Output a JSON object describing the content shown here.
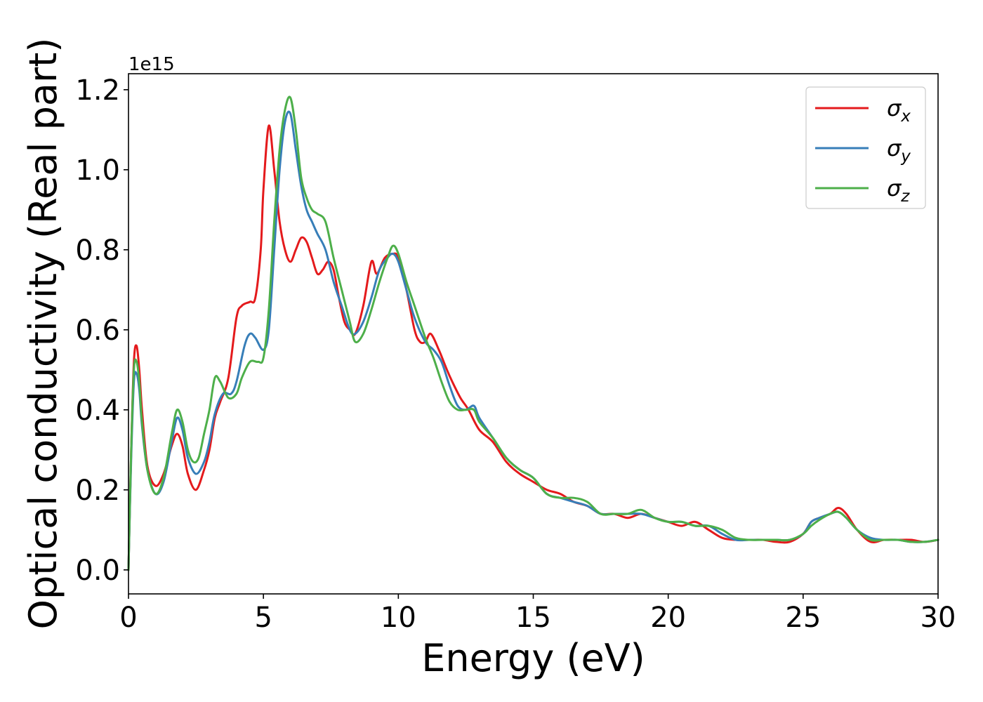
{
  "chart_data": {
    "type": "line",
    "xlabel": "Energy (eV)",
    "ylabel": "Optical conductivity (Real part)",
    "y_offset_label": "1e15",
    "xlim": [
      0,
      30
    ],
    "ylim": [
      -0.06,
      1.24
    ],
    "xticks": [
      0,
      5,
      10,
      15,
      20,
      25,
      30
    ],
    "xtick_labels": [
      "0",
      "5",
      "10",
      "15",
      "20",
      "25",
      "30"
    ],
    "yticks": [
      0.0,
      0.2,
      0.4,
      0.6,
      0.8,
      1.0,
      1.2
    ],
    "ytick_labels": [
      "0.0",
      "0.2",
      "0.4",
      "0.6",
      "0.8",
      "1.0",
      "1.2"
    ],
    "grid": false,
    "legend_position": "top-right",
    "series": [
      {
        "name": "σx",
        "legend_base": "σ",
        "legend_sub": "x",
        "color": "#e41a1c",
        "x": [
          0,
          0.1,
          0.2,
          0.3,
          0.4,
          0.5,
          0.7,
          1.0,
          1.3,
          1.6,
          1.8,
          2.0,
          2.2,
          2.5,
          2.8,
          3.0,
          3.2,
          3.4,
          3.7,
          4.0,
          4.2,
          4.5,
          4.7,
          4.9,
          5.0,
          5.2,
          5.4,
          5.6,
          5.8,
          6.0,
          6.2,
          6.4,
          6.6,
          6.8,
          7.0,
          7.2,
          7.4,
          7.6,
          7.8,
          8.0,
          8.2,
          8.4,
          8.7,
          9.0,
          9.2,
          9.5,
          9.8,
          10.0,
          10.3,
          10.6,
          10.8,
          11.0,
          11.2,
          11.5,
          11.8,
          12.0,
          12.3,
          12.6,
          13.0,
          13.5,
          14.0,
          14.5,
          15.0,
          15.5,
          16.0,
          16.5,
          17.0,
          17.5,
          18.0,
          18.5,
          19.0,
          19.5,
          20.0,
          20.5,
          21.0,
          21.5,
          22.0,
          22.5,
          23.0,
          23.5,
          24.0,
          24.5,
          25.0,
          25.3,
          25.6,
          26.0,
          26.3,
          26.6,
          27.0,
          27.5,
          28.0,
          28.5,
          29.0,
          29.5,
          30.0
        ],
        "values": [
          0.0,
          0.3,
          0.52,
          0.56,
          0.5,
          0.4,
          0.26,
          0.21,
          0.24,
          0.31,
          0.34,
          0.31,
          0.24,
          0.2,
          0.25,
          0.3,
          0.38,
          0.42,
          0.48,
          0.63,
          0.66,
          0.67,
          0.68,
          0.8,
          0.95,
          1.11,
          1.0,
          0.87,
          0.8,
          0.77,
          0.8,
          0.83,
          0.82,
          0.78,
          0.74,
          0.75,
          0.77,
          0.75,
          0.68,
          0.62,
          0.6,
          0.59,
          0.66,
          0.77,
          0.74,
          0.78,
          0.79,
          0.78,
          0.7,
          0.6,
          0.57,
          0.57,
          0.59,
          0.55,
          0.5,
          0.47,
          0.43,
          0.4,
          0.35,
          0.32,
          0.27,
          0.24,
          0.22,
          0.2,
          0.19,
          0.17,
          0.16,
          0.14,
          0.14,
          0.13,
          0.14,
          0.13,
          0.12,
          0.11,
          0.12,
          0.1,
          0.08,
          0.075,
          0.075,
          0.075,
          0.07,
          0.07,
          0.09,
          0.12,
          0.13,
          0.14,
          0.155,
          0.14,
          0.1,
          0.07,
          0.075,
          0.075,
          0.075,
          0.07,
          0.075
        ]
      },
      {
        "name": "σy",
        "legend_base": "σ",
        "legend_sub": "y",
        "color": "#377eb8",
        "x": [
          0,
          0.1,
          0.2,
          0.3,
          0.4,
          0.5,
          0.7,
          1.0,
          1.3,
          1.6,
          1.8,
          2.0,
          2.2,
          2.5,
          2.8,
          3.0,
          3.2,
          3.5,
          3.8,
          4.0,
          4.3,
          4.5,
          4.7,
          5.0,
          5.2,
          5.4,
          5.6,
          5.8,
          6.0,
          6.2,
          6.4,
          6.6,
          6.8,
          7.0,
          7.3,
          7.6,
          7.9,
          8.2,
          8.4,
          8.7,
          9.0,
          9.3,
          9.6,
          9.8,
          10.0,
          10.3,
          10.6,
          11.0,
          11.3,
          11.6,
          11.9,
          12.2,
          12.5,
          12.8,
          13.0,
          13.5,
          14.0,
          14.5,
          15.0,
          15.5,
          16.0,
          16.5,
          17.0,
          17.5,
          18.0,
          18.5,
          19.0,
          19.5,
          20.0,
          20.5,
          21.0,
          21.5,
          22.0,
          22.5,
          23.0,
          23.5,
          24.0,
          24.5,
          25.0,
          25.3,
          25.6,
          26.0,
          26.3,
          26.6,
          27.0,
          27.5,
          28.0,
          28.5,
          29.0,
          29.5,
          30.0
        ],
        "values": [
          0.0,
          0.28,
          0.47,
          0.49,
          0.45,
          0.36,
          0.25,
          0.19,
          0.22,
          0.32,
          0.38,
          0.35,
          0.28,
          0.24,
          0.27,
          0.32,
          0.39,
          0.44,
          0.44,
          0.47,
          0.56,
          0.59,
          0.58,
          0.55,
          0.6,
          0.8,
          1.0,
          1.12,
          1.14,
          1.05,
          0.96,
          0.9,
          0.87,
          0.84,
          0.8,
          0.72,
          0.66,
          0.6,
          0.59,
          0.62,
          0.68,
          0.75,
          0.78,
          0.79,
          0.77,
          0.7,
          0.63,
          0.57,
          0.55,
          0.52,
          0.46,
          0.41,
          0.4,
          0.41,
          0.38,
          0.33,
          0.28,
          0.25,
          0.23,
          0.19,
          0.18,
          0.17,
          0.16,
          0.14,
          0.14,
          0.14,
          0.14,
          0.13,
          0.12,
          0.12,
          0.11,
          0.11,
          0.09,
          0.075,
          0.075,
          0.075,
          0.075,
          0.075,
          0.09,
          0.12,
          0.13,
          0.14,
          0.145,
          0.13,
          0.1,
          0.08,
          0.075,
          0.075,
          0.07,
          0.07,
          0.075
        ]
      },
      {
        "name": "σz",
        "legend_base": "σ",
        "legend_sub": "z",
        "color": "#4daf4a",
        "x": [
          0,
          0.1,
          0.2,
          0.3,
          0.4,
          0.5,
          0.7,
          1.0,
          1.3,
          1.6,
          1.8,
          2.0,
          2.2,
          2.4,
          2.6,
          2.8,
          3.0,
          3.2,
          3.4,
          3.7,
          4.0,
          4.2,
          4.5,
          4.8,
          5.0,
          5.2,
          5.4,
          5.6,
          5.8,
          6.0,
          6.2,
          6.4,
          6.6,
          6.8,
          7.0,
          7.3,
          7.6,
          7.9,
          8.2,
          8.4,
          8.7,
          9.0,
          9.3,
          9.6,
          9.8,
          10.0,
          10.3,
          10.6,
          11.0,
          11.3,
          11.6,
          11.9,
          12.2,
          12.5,
          12.8,
          13.0,
          13.5,
          14.0,
          14.5,
          15.0,
          15.5,
          16.0,
          16.5,
          17.0,
          17.5,
          18.0,
          18.5,
          19.0,
          19.5,
          20.0,
          20.5,
          21.0,
          21.5,
          22.0,
          22.5,
          23.0,
          23.5,
          24.0,
          24.5,
          25.0,
          25.3,
          25.6,
          26.0,
          26.3,
          26.6,
          27.0,
          27.5,
          28.0,
          28.5,
          29.0,
          29.5,
          30.0
        ],
        "values": [
          0.0,
          0.3,
          0.5,
          0.52,
          0.47,
          0.37,
          0.25,
          0.19,
          0.23,
          0.34,
          0.4,
          0.37,
          0.3,
          0.27,
          0.28,
          0.34,
          0.4,
          0.48,
          0.47,
          0.43,
          0.44,
          0.48,
          0.52,
          0.52,
          0.53,
          0.65,
          0.87,
          1.05,
          1.15,
          1.18,
          1.1,
          0.98,
          0.93,
          0.9,
          0.89,
          0.87,
          0.78,
          0.7,
          0.62,
          0.57,
          0.59,
          0.65,
          0.72,
          0.78,
          0.81,
          0.79,
          0.72,
          0.66,
          0.58,
          0.53,
          0.47,
          0.42,
          0.4,
          0.4,
          0.4,
          0.37,
          0.33,
          0.28,
          0.25,
          0.23,
          0.19,
          0.18,
          0.18,
          0.17,
          0.14,
          0.14,
          0.14,
          0.15,
          0.13,
          0.12,
          0.12,
          0.11,
          0.11,
          0.1,
          0.08,
          0.075,
          0.075,
          0.075,
          0.075,
          0.09,
          0.11,
          0.125,
          0.14,
          0.145,
          0.13,
          0.1,
          0.075,
          0.075,
          0.075,
          0.07,
          0.07,
          0.075
        ]
      }
    ]
  }
}
